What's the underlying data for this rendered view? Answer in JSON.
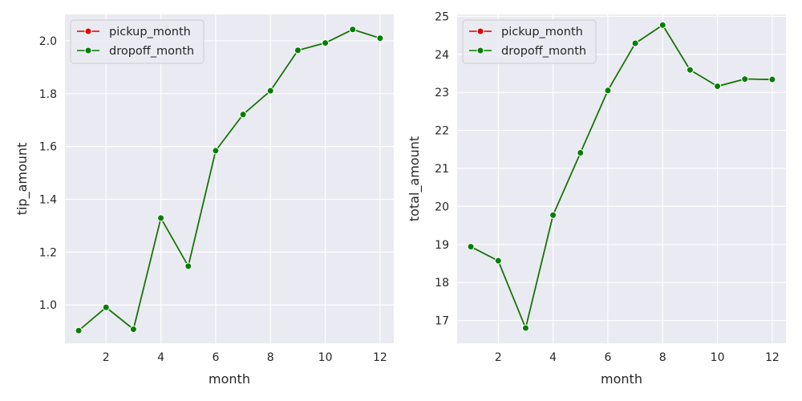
{
  "chart_data": [
    {
      "type": "line",
      "xlabel": "month",
      "ylabel": "tip_amount",
      "x": [
        1,
        2,
        3,
        4,
        5,
        6,
        7,
        8,
        9,
        10,
        11,
        12
      ],
      "xlim": [
        0.5,
        12.5
      ],
      "ylim": [
        0.855,
        2.1
      ],
      "xticks": [
        "2",
        "4",
        "6",
        "8",
        "10",
        "12"
      ],
      "yticks": [
        "1.0",
        "1.2",
        "1.4",
        "1.6",
        "1.8",
        "2.0"
      ],
      "grid": true,
      "legend": "top-left",
      "series": [
        {
          "name": "pickup_month",
          "color": "#e00000",
          "values": [
            0.903,
            0.991,
            0.908,
            1.329,
            1.147,
            1.584,
            1.721,
            1.811,
            1.964,
            1.992,
            2.043,
            2.01
          ]
        },
        {
          "name": "dropoff_month",
          "color": "#007f00",
          "values": [
            0.903,
            0.991,
            0.908,
            1.329,
            1.147,
            1.584,
            1.721,
            1.811,
            1.964,
            1.992,
            2.043,
            2.01
          ]
        }
      ]
    },
    {
      "type": "line",
      "xlabel": "month",
      "ylabel": "total_amount",
      "x": [
        1,
        2,
        3,
        4,
        5,
        6,
        7,
        8,
        9,
        10,
        11,
        12
      ],
      "xlim": [
        0.5,
        12.5
      ],
      "ylim": [
        16.4,
        25.05
      ],
      "xticks": [
        "2",
        "4",
        "6",
        "8",
        "10",
        "12"
      ],
      "yticks": [
        "17",
        "18",
        "19",
        "20",
        "21",
        "22",
        "23",
        "24",
        "25"
      ],
      "grid": true,
      "legend": "top-left",
      "series": [
        {
          "name": "pickup_month",
          "color": "#e00000",
          "values": [
            18.94,
            18.57,
            16.8,
            19.77,
            21.41,
            23.05,
            24.29,
            24.77,
            23.59,
            23.16,
            23.35,
            23.34
          ]
        },
        {
          "name": "dropoff_month",
          "color": "#007f00",
          "values": [
            18.94,
            18.57,
            16.8,
            19.77,
            21.41,
            23.05,
            24.29,
            24.77,
            23.59,
            23.16,
            23.35,
            23.34
          ]
        }
      ]
    }
  ]
}
